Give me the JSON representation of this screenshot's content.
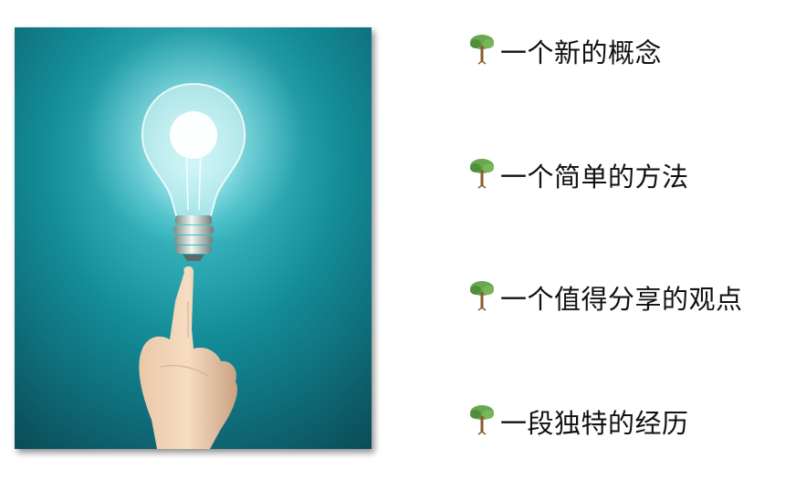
{
  "bullets": [
    {
      "label": "一个新的概念",
      "icon": "tree-icon"
    },
    {
      "label": "一个简单的方法",
      "icon": "tree-icon"
    },
    {
      "label": "一个值得分享的观点",
      "icon": "tree-icon"
    },
    {
      "label": "一段独特的经历",
      "icon": "tree-icon"
    }
  ],
  "colors": {
    "background_teal": "#0f8a95",
    "background_dark": "#0a4e57",
    "bulb_glow": "#eaffff",
    "text": "#111111"
  }
}
